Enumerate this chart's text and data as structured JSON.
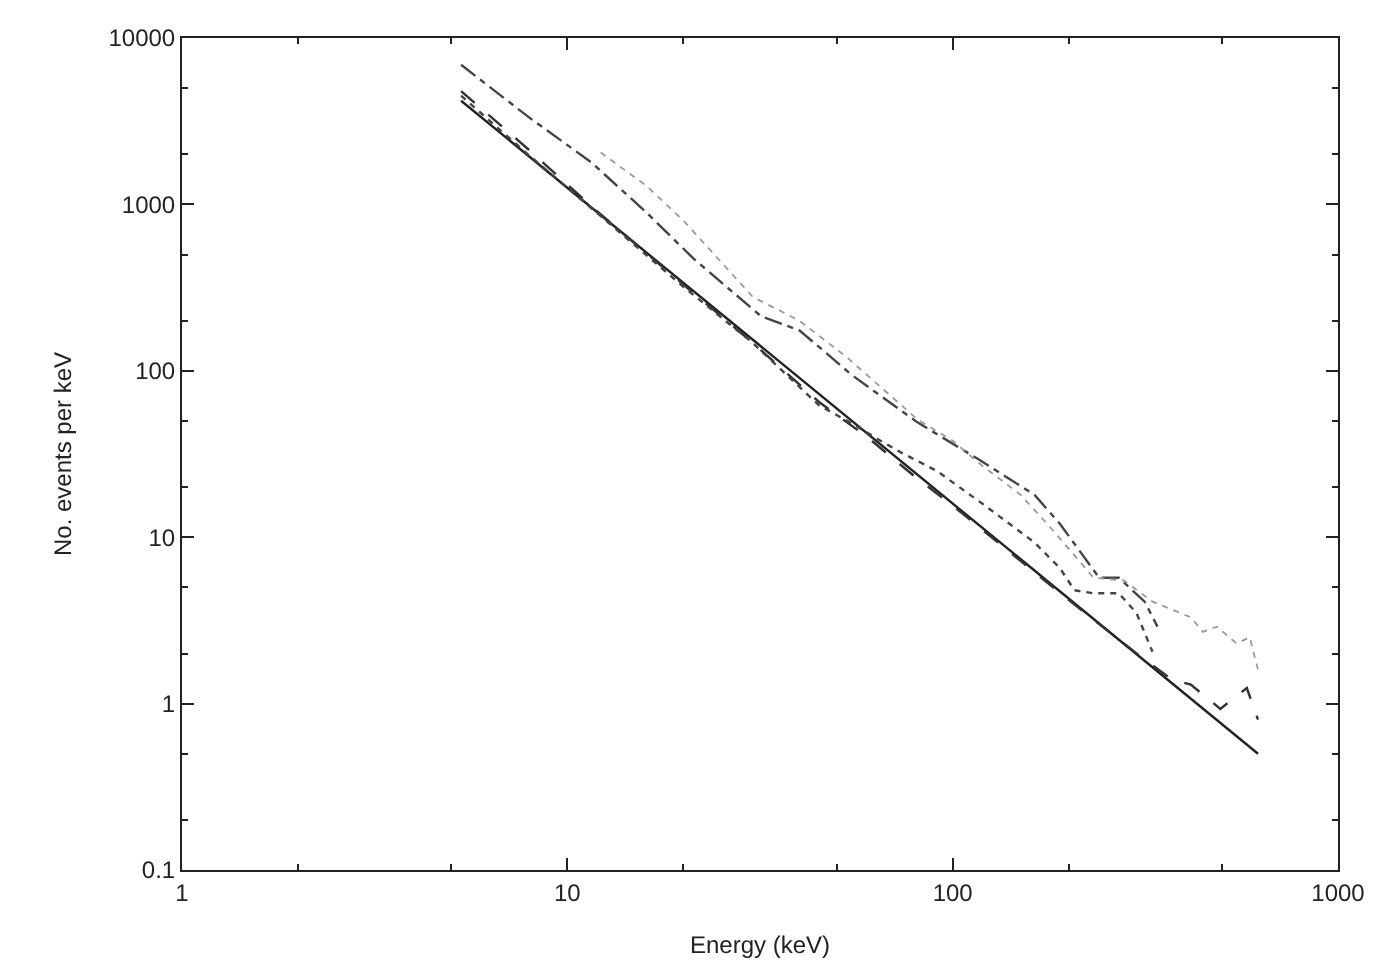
{
  "chart_data": {
    "type": "line",
    "xlabel": "Energy (keV)",
    "ylabel": "No. events per keV",
    "log": "xy",
    "xlim": [
      1,
      1000
    ],
    "xticks": [
      1,
      10,
      100,
      1000
    ],
    "ylim": [
      0.1,
      10000
    ],
    "yticks": [
      0.1,
      1,
      10,
      100,
      1000,
      10000
    ],
    "series": [
      {
        "color": "#222222",
        "line_style": "solid",
        "x": [
          5.3,
          620
        ],
        "values": [
          4200,
          0.5
        ]
      },
      {
        "color": "#333333",
        "line_style": "dashed",
        "x": [
          5.3,
          8,
          12,
          20,
          30,
          45,
          60,
          80,
          100,
          150,
          200,
          300,
          370,
          415,
          495,
          580,
          620
        ],
        "values": [
          4800,
          2100,
          900,
          330,
          150,
          65,
          40,
          23,
          15.5,
          7.2,
          4.2,
          2.0,
          1.4,
          1.3,
          0.93,
          1.24,
          0.8
        ]
      },
      {
        "color": "#444444",
        "line_style": "dotted",
        "x": [
          5.3,
          8,
          12,
          20,
          30,
          45,
          55,
          65,
          74,
          91,
          119,
          163,
          190,
          207,
          232,
          270,
          300,
          330
        ],
        "values": [
          4500,
          1950,
          880,
          320,
          150,
          62,
          48,
          38,
          32,
          25,
          16,
          9.3,
          6.5,
          4.8,
          4.6,
          4.6,
          3.5,
          2.05
        ]
      },
      {
        "color": "#444444",
        "line_style": "dashdot",
        "x": [
          5.3,
          8,
          11.5,
          16,
          21.3,
          31.8,
          40,
          46.6,
          54.5,
          81,
          115,
          163,
          190,
          240,
          270,
          315,
          340
        ],
        "values": [
          6900,
          3300,
          1800,
          900,
          470,
          213,
          175,
          130,
          95,
          49,
          30,
          18,
          12,
          5.7,
          5.7,
          4.1,
          2.9
        ]
      },
      {
        "color": "#999999",
        "line_style": "dotted",
        "x": [
          12.2,
          16,
          20,
          30.3,
          40,
          52.6,
          65,
          81,
          100,
          119,
          150,
          176,
          205,
          232,
          278,
          330,
          415,
          446,
          485,
          545,
          590,
          620
        ],
        "values": [
          2050,
          1300,
          800,
          278,
          200,
          123,
          80,
          51,
          38,
          27,
          18,
          12,
          8,
          5.7,
          5.5,
          4.1,
          3.3,
          2.7,
          2.9,
          2.3,
          2.5,
          1.6
        ]
      }
    ]
  }
}
